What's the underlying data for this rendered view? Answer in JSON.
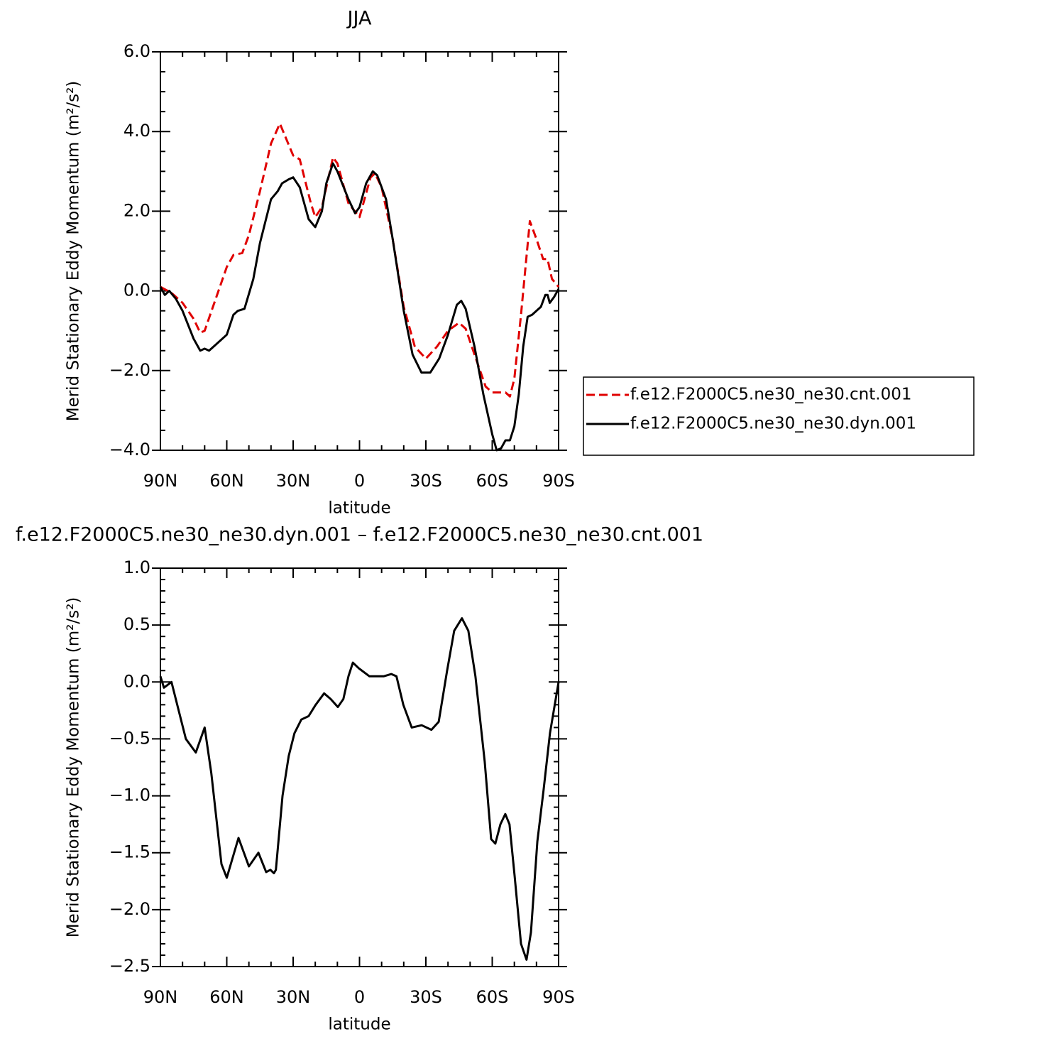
{
  "chart_data": [
    {
      "type": "line",
      "title": "JJA",
      "xlabel": "latitude",
      "ylabel": "Merid Stationary Eddy Momentum (m²/s²)",
      "xlim": [
        90,
        -90
      ],
      "xticks": [
        {
          "value": 90,
          "label": "90N"
        },
        {
          "value": 60,
          "label": "60N"
        },
        {
          "value": 30,
          "label": "30N"
        },
        0,
        {
          "value": -30,
          "label": "30S"
        },
        {
          "value": -60,
          "label": "60S"
        },
        {
          "value": -90,
          "label": "90S"
        }
      ],
      "ylim": [
        -4,
        6
      ],
      "yticks": [
        {
          "value": 6,
          "label": "6.0"
        },
        {
          "value": 4,
          "label": "4.0"
        },
        {
          "value": 2,
          "label": "2.0"
        },
        {
          "value": 0,
          "label": "0.0"
        },
        {
          "value": -2,
          "label": "−2.0"
        },
        {
          "value": -4,
          "label": "−4.0"
        }
      ],
      "legend": "right",
      "series": [
        {
          "name": "f.e12.F2000C5.ne30_ne30.cnt.001",
          "color": "#e00000",
          "dash": true,
          "x": [
            90,
            85,
            80,
            75,
            72,
            70,
            65,
            60,
            57,
            53,
            50,
            45,
            40,
            36,
            33,
            30,
            27,
            22,
            20,
            17,
            12,
            10,
            5,
            0,
            -5,
            -7,
            -10,
            -15,
            -20,
            -25,
            -30,
            -35,
            -40,
            -45,
            -48,
            -52,
            -57,
            -60,
            -63,
            -66,
            -68,
            -70,
            -73,
            -77,
            -80,
            -83,
            -85,
            -87,
            -90
          ],
          "values": [
            0.1,
            -0.05,
            -0.3,
            -0.7,
            -1.05,
            -1.0,
            -0.2,
            0.6,
            0.9,
            0.95,
            1.4,
            2.5,
            3.7,
            4.2,
            3.8,
            3.4,
            3.3,
            2.2,
            1.85,
            2.1,
            3.35,
            3.2,
            2.2,
            1.85,
            2.85,
            2.95,
            2.6,
            1.3,
            -0.4,
            -1.4,
            -1.7,
            -1.4,
            -1.0,
            -0.8,
            -0.95,
            -1.6,
            -2.4,
            -2.55,
            -2.55,
            -2.55,
            -2.65,
            -2.2,
            -0.6,
            1.75,
            1.3,
            0.8,
            0.8,
            0.3,
            0.1
          ]
        },
        {
          "name": "f.e12.F2000C5.ne30_ne30.dyn.001",
          "color": "#000000",
          "dash": false,
          "x": [
            90,
            88,
            86,
            83,
            80,
            75,
            72,
            70,
            68,
            65,
            60,
            57,
            55,
            52,
            48,
            45,
            40,
            37,
            35,
            32,
            30,
            27,
            23,
            20,
            17,
            15,
            12,
            10,
            5,
            2,
            0,
            -3,
            -6,
            -8,
            -12,
            -15,
            -20,
            -24,
            -28,
            -32,
            -36,
            -40,
            -44,
            -46,
            -48,
            -52,
            -56,
            -60,
            -62,
            -64,
            -66,
            -68,
            -70,
            -72,
            -74,
            -76,
            -78,
            -80,
            -82,
            -84,
            -85,
            -86,
            -88,
            -90
          ],
          "values": [
            0.1,
            -0.1,
            0,
            -0.2,
            -0.5,
            -1.2,
            -1.5,
            -1.45,
            -1.5,
            -1.35,
            -1.1,
            -0.6,
            -0.5,
            -0.45,
            0.3,
            1.2,
            2.3,
            2.5,
            2.7,
            2.8,
            2.85,
            2.6,
            1.8,
            1.6,
            2.0,
            2.7,
            3.2,
            3.0,
            2.3,
            1.95,
            2.1,
            2.7,
            3.0,
            2.9,
            2.3,
            1.3,
            -0.5,
            -1.6,
            -2.05,
            -2.05,
            -1.7,
            -1.1,
            -0.35,
            -0.25,
            -0.45,
            -1.4,
            -2.6,
            -3.6,
            -4.0,
            -3.95,
            -3.75,
            -3.75,
            -3.4,
            -2.6,
            -1.4,
            -0.65,
            -0.6,
            -0.5,
            -0.4,
            -0.1,
            -0.1,
            -0.3,
            -0.15,
            0.05
          ]
        }
      ]
    },
    {
      "type": "line",
      "title": "f.e12.F2000C5.ne30_ne30.dyn.001 – f.e12.F2000C5.ne30_ne30.cnt.001",
      "xlabel": "latitude",
      "ylabel": "Merid Stationary Eddy Momentum (m²/s²)",
      "xlim": [
        90,
        -90
      ],
      "xticks": [
        {
          "value": 90,
          "label": "90N"
        },
        {
          "value": 60,
          "label": "60N"
        },
        {
          "value": 30,
          "label": "30N"
        },
        0,
        {
          "value": -30,
          "label": "30S"
        },
        {
          "value": -60,
          "label": "60S"
        },
        {
          "value": -90,
          "label": "90S"
        }
      ],
      "ylim": [
        -2.5,
        1
      ],
      "yticks": [
        {
          "value": 1,
          "label": "1.0"
        },
        0.5,
        {
          "value": 0,
          "label": "0.0"
        },
        {
          "value": -0.5,
          "label": "−0.5"
        },
        {
          "value": -1,
          "label": "−1.0"
        },
        {
          "value": -1.5,
          "label": "−1.5"
        },
        {
          "value": -2,
          "label": "−2.0"
        },
        {
          "value": -2.5,
          "label": "−2.5"
        }
      ],
      "series": [
        {
          "color": "#000000",
          "dash": false,
          "x": [
            90,
            88.4,
            85,
            78.5,
            74,
            70,
            67,
            62.4,
            60,
            54.7,
            50,
            45.7,
            42.2,
            40.3,
            38.7,
            37.8,
            34.8,
            32,
            29.4,
            26.3,
            23,
            19.8,
            16,
            13,
            9.8,
            7.3,
            5,
            3,
            0.3,
            -4.5,
            -10.9,
            -14.4,
            -16.7,
            -19.8,
            -23.6,
            -28.1,
            -32.5,
            -35.8,
            -39.6,
            -42.8,
            -46.3,
            -49.2,
            -52.4,
            -56.6,
            -59.5,
            -61.4,
            -63.7,
            -65.9,
            -67.8,
            -70.1,
            -73,
            -75.5,
            -77.5,
            -80.4,
            -83.2,
            -86.1,
            -90
          ],
          "values": [
            0.05,
            -0.05,
            0.0,
            -0.5,
            -0.62,
            -0.4,
            -0.8,
            -1.6,
            -1.72,
            -1.37,
            -1.62,
            -1.5,
            -1.67,
            -1.65,
            -1.68,
            -1.65,
            -1.0,
            -0.65,
            -0.45,
            -0.33,
            -0.3,
            -0.2,
            -0.1,
            -0.15,
            -0.22,
            -0.15,
            0.05,
            0.17,
            0.12,
            0.05,
            0.05,
            0.07,
            0.05,
            -0.2,
            -0.4,
            -0.38,
            -0.42,
            -0.35,
            0.1,
            0.45,
            0.56,
            0.45,
            0.05,
            -0.7,
            -1.38,
            -1.42,
            -1.25,
            -1.16,
            -1.25,
            -1.7,
            -2.3,
            -2.44,
            -2.2,
            -1.4,
            -0.95,
            -0.45,
            0.0
          ]
        }
      ]
    }
  ]
}
